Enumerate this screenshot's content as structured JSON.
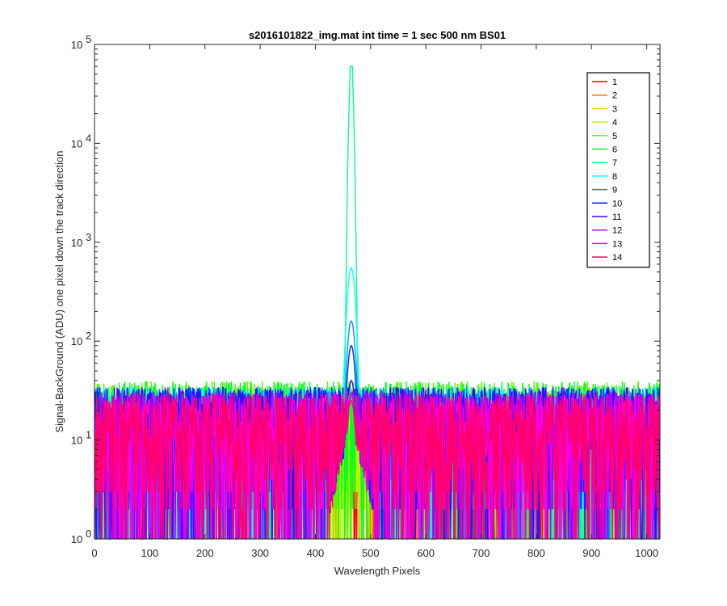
{
  "chart_data": {
    "type": "line",
    "title": "s2016101822_img.mat int time = 1 sec  500 nm BS01",
    "xlabel": "Wavelength Pixels",
    "ylabel": "Signal-BackGround (ADU) one pixel down the track direction",
    "xlim": [
      0,
      1024
    ],
    "ylim": [
      1,
      100000
    ],
    "yscale": "log",
    "xticks": [
      0,
      100,
      200,
      300,
      400,
      500,
      600,
      700,
      800,
      900,
      1000
    ],
    "yticks": [
      {
        "value": 1,
        "base": "10",
        "exp": "0"
      },
      {
        "value": 10,
        "base": "10",
        "exp": "1"
      },
      {
        "value": 100,
        "base": "10",
        "exp": "2"
      },
      {
        "value": 1000,
        "base": "10",
        "exp": "3"
      },
      {
        "value": 10000,
        "base": "10",
        "exp": "4"
      },
      {
        "value": 100000,
        "base": "10",
        "exp": "5"
      }
    ],
    "grid": false,
    "legend_position": "top-right",
    "x_range_sampled": [
      0,
      1023
    ],
    "peak_center_x": 465,
    "series": [
      {
        "name": "1",
        "color": "#ff0000",
        "noise_max": 30,
        "peak": 0
      },
      {
        "name": "2",
        "color": "#ff6d00",
        "noise_max": 30,
        "peak": 0
      },
      {
        "name": "3",
        "color": "#ffcc00",
        "noise_max": 32,
        "peak": 0
      },
      {
        "name": "4",
        "color": "#b6ff00",
        "noise_max": 35,
        "peak": 0
      },
      {
        "name": "5",
        "color": "#49ff00",
        "noise_max": 40,
        "peak": 0
      },
      {
        "name": "6",
        "color": "#00ff24",
        "noise_max": 40,
        "peak": 0
      },
      {
        "name": "7",
        "color": "#00ff92",
        "noise_max": 35,
        "peak": 60000
      },
      {
        "name": "8",
        "color": "#00ffff",
        "noise_max": 35,
        "peak": 550
      },
      {
        "name": "9",
        "color": "#0092ff",
        "noise_max": 35,
        "peak": 160
      },
      {
        "name": "10",
        "color": "#0024ff",
        "noise_max": 35,
        "peak": 90
      },
      {
        "name": "11",
        "color": "#4900ff",
        "noise_max": 35,
        "peak": 40
      },
      {
        "name": "12",
        "color": "#b600ff",
        "noise_max": 32,
        "peak": 30
      },
      {
        "name": "13",
        "color": "#ff00db",
        "noise_max": 30,
        "peak": 28
      },
      {
        "name": "14",
        "color": "#ff006d",
        "noise_max": 30,
        "peak": 25
      }
    ]
  }
}
